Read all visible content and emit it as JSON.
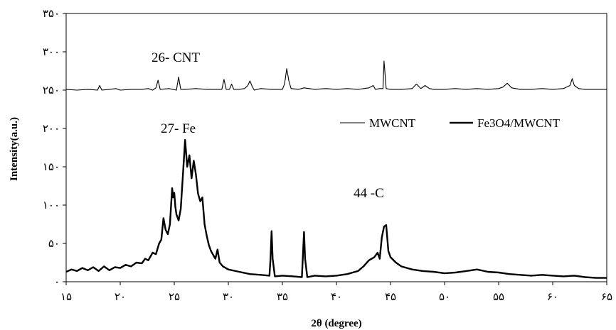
{
  "chart_data": {
    "type": "line",
    "xlabel": "2θ (degree)",
    "ylabel": "Intensity(a.u.)",
    "xlim": [
      15,
      65
    ],
    "ylim": [
      0,
      350
    ],
    "xticks": [
      15,
      20,
      25,
      30,
      35,
      40,
      45,
      50,
      55,
      60,
      65
    ],
    "xtick_labels": [
      "۱۵",
      "۲۰",
      "۲۵",
      "۳۰",
      "۳۵",
      "۴۰",
      "۴۵",
      "۵۰",
      "۵۵",
      "۶۰",
      "۶۵"
    ],
    "yticks": [
      0,
      50,
      100,
      150,
      200,
      250,
      300,
      350
    ],
    "ytick_labels": [
      "۰",
      "۵۰",
      "۱۰۰",
      "۱۵۰",
      "۲۰۰",
      "۲۵۰",
      "۳۰۰",
      "۳۵۰"
    ],
    "grid": false,
    "legend": "right",
    "annotations": [
      {
        "text": "26- CNT",
        "x": 23.2,
        "y": 272
      },
      {
        "text": "27- Fe",
        "x": 24.8,
        "y": 195
      },
      {
        "text": "44 -C",
        "x": 41.8,
        "y": 110
      }
    ],
    "series": [
      {
        "name": "MWCNT",
        "color": "#000000",
        "points": [
          [
            15.0,
            251
          ],
          [
            16.0,
            250
          ],
          [
            17.0,
            251
          ],
          [
            17.9,
            250
          ],
          [
            18.1,
            256
          ],
          [
            18.3,
            250
          ],
          [
            19.0,
            251
          ],
          [
            19.6,
            252
          ],
          [
            20.0,
            250
          ],
          [
            21.0,
            251
          ],
          [
            22.0,
            251
          ],
          [
            22.6,
            252
          ],
          [
            23.0,
            250
          ],
          [
            23.3,
            253
          ],
          [
            23.5,
            263
          ],
          [
            23.7,
            251
          ],
          [
            24.5,
            252
          ],
          [
            25.2,
            250
          ],
          [
            25.4,
            267
          ],
          [
            25.6,
            251
          ],
          [
            26.0,
            251
          ],
          [
            27.0,
            252
          ],
          [
            28.0,
            251
          ],
          [
            29.0,
            251
          ],
          [
            29.4,
            251
          ],
          [
            29.6,
            264
          ],
          [
            29.8,
            251
          ],
          [
            30.1,
            251
          ],
          [
            30.3,
            258
          ],
          [
            30.5,
            251
          ],
          [
            31.0,
            251
          ],
          [
            31.5,
            252
          ],
          [
            31.8,
            256
          ],
          [
            32.0,
            262
          ],
          [
            32.2,
            255
          ],
          [
            32.4,
            250
          ],
          [
            33.0,
            252
          ],
          [
            34.0,
            251
          ],
          [
            35.0,
            251
          ],
          [
            35.2,
            258
          ],
          [
            35.4,
            278
          ],
          [
            35.6,
            262
          ],
          [
            35.8,
            252
          ],
          [
            36.5,
            251
          ],
          [
            37.0,
            253
          ],
          [
            38.0,
            251
          ],
          [
            39.0,
            252
          ],
          [
            40.0,
            251
          ],
          [
            41.0,
            252
          ],
          [
            42.0,
            251
          ],
          [
            43.0,
            253
          ],
          [
            43.4,
            256
          ],
          [
            43.6,
            251
          ],
          [
            44.0,
            252
          ],
          [
            44.3,
            252
          ],
          [
            44.4,
            288
          ],
          [
            44.6,
            252
          ],
          [
            45.0,
            251
          ],
          [
            46.0,
            251
          ],
          [
            47.0,
            252
          ],
          [
            47.4,
            258
          ],
          [
            47.8,
            252
          ],
          [
            48.2,
            256
          ],
          [
            48.6,
            252
          ],
          [
            49.0,
            251
          ],
          [
            50.0,
            251
          ],
          [
            51.0,
            252
          ],
          [
            52.0,
            251
          ],
          [
            53.0,
            252
          ],
          [
            54.0,
            251
          ],
          [
            55.0,
            252
          ],
          [
            55.4,
            254
          ],
          [
            55.8,
            259
          ],
          [
            56.2,
            253
          ],
          [
            57.0,
            251
          ],
          [
            58.0,
            251
          ],
          [
            59.0,
            252
          ],
          [
            60.0,
            251
          ],
          [
            61.0,
            252
          ],
          [
            61.6,
            256
          ],
          [
            61.8,
            265
          ],
          [
            62.0,
            256
          ],
          [
            62.4,
            252
          ],
          [
            63.0,
            251
          ],
          [
            64.0,
            251
          ],
          [
            65.0,
            251
          ]
        ]
      },
      {
        "name": "Fe3O4/MWCNT",
        "color": "#000000",
        "points": [
          [
            15.0,
            13
          ],
          [
            15.5,
            16
          ],
          [
            16.0,
            14
          ],
          [
            16.5,
            18
          ],
          [
            17.0,
            15
          ],
          [
            17.5,
            19
          ],
          [
            18.0,
            14
          ],
          [
            18.5,
            20
          ],
          [
            19.0,
            15
          ],
          [
            19.5,
            19
          ],
          [
            20.0,
            18
          ],
          [
            20.5,
            22
          ],
          [
            21.0,
            20
          ],
          [
            21.5,
            25
          ],
          [
            22.0,
            24
          ],
          [
            22.3,
            30
          ],
          [
            22.6,
            28
          ],
          [
            23.0,
            38
          ],
          [
            23.3,
            36
          ],
          [
            23.6,
            50
          ],
          [
            23.8,
            55
          ],
          [
            24.0,
            83
          ],
          [
            24.2,
            68
          ],
          [
            24.4,
            62
          ],
          [
            24.6,
            75
          ],
          [
            24.8,
            122
          ],
          [
            24.9,
            110
          ],
          [
            25.0,
            116
          ],
          [
            25.1,
            98
          ],
          [
            25.2,
            88
          ],
          [
            25.4,
            80
          ],
          [
            25.6,
            95
          ],
          [
            25.8,
            140
          ],
          [
            26.0,
            185
          ],
          [
            26.2,
            150
          ],
          [
            26.4,
            165
          ],
          [
            26.6,
            135
          ],
          [
            26.8,
            158
          ],
          [
            27.0,
            140
          ],
          [
            27.2,
            115
          ],
          [
            27.4,
            105
          ],
          [
            27.6,
            110
          ],
          [
            27.8,
            75
          ],
          [
            28.0,
            60
          ],
          [
            28.2,
            48
          ],
          [
            28.4,
            40
          ],
          [
            28.6,
            35
          ],
          [
            28.8,
            30
          ],
          [
            29.0,
            42
          ],
          [
            29.2,
            25
          ],
          [
            29.5,
            20
          ],
          [
            30.0,
            16
          ],
          [
            31.0,
            13
          ],
          [
            32.0,
            10
          ],
          [
            33.0,
            9
          ],
          [
            33.8,
            8
          ],
          [
            33.9,
            30
          ],
          [
            34.0,
            66
          ],
          [
            34.1,
            30
          ],
          [
            34.3,
            7
          ],
          [
            35.0,
            8
          ],
          [
            36.0,
            7
          ],
          [
            36.8,
            6
          ],
          [
            36.9,
            35
          ],
          [
            37.0,
            65
          ],
          [
            37.1,
            30
          ],
          [
            37.3,
            6
          ],
          [
            38.0,
            8
          ],
          [
            39.0,
            7
          ],
          [
            40.0,
            8
          ],
          [
            41.0,
            10
          ],
          [
            42.0,
            14
          ],
          [
            42.5,
            20
          ],
          [
            43.0,
            28
          ],
          [
            43.5,
            32
          ],
          [
            43.8,
            38
          ],
          [
            44.0,
            30
          ],
          [
            44.2,
            58
          ],
          [
            44.4,
            72
          ],
          [
            44.6,
            74
          ],
          [
            44.8,
            40
          ],
          [
            45.0,
            32
          ],
          [
            45.5,
            25
          ],
          [
            46.0,
            20
          ],
          [
            47.0,
            16
          ],
          [
            48.0,
            14
          ],
          [
            49.0,
            13
          ],
          [
            50.0,
            11
          ],
          [
            51.0,
            12
          ],
          [
            52.0,
            14
          ],
          [
            53.0,
            16
          ],
          [
            54.0,
            13
          ],
          [
            55.0,
            12
          ],
          [
            56.0,
            10
          ],
          [
            57.0,
            9
          ],
          [
            58.0,
            8
          ],
          [
            59.0,
            9
          ],
          [
            60.0,
            8
          ],
          [
            61.0,
            7
          ],
          [
            62.0,
            8
          ],
          [
            63.0,
            6
          ],
          [
            64.0,
            5
          ],
          [
            65.0,
            5
          ]
        ]
      }
    ]
  }
}
